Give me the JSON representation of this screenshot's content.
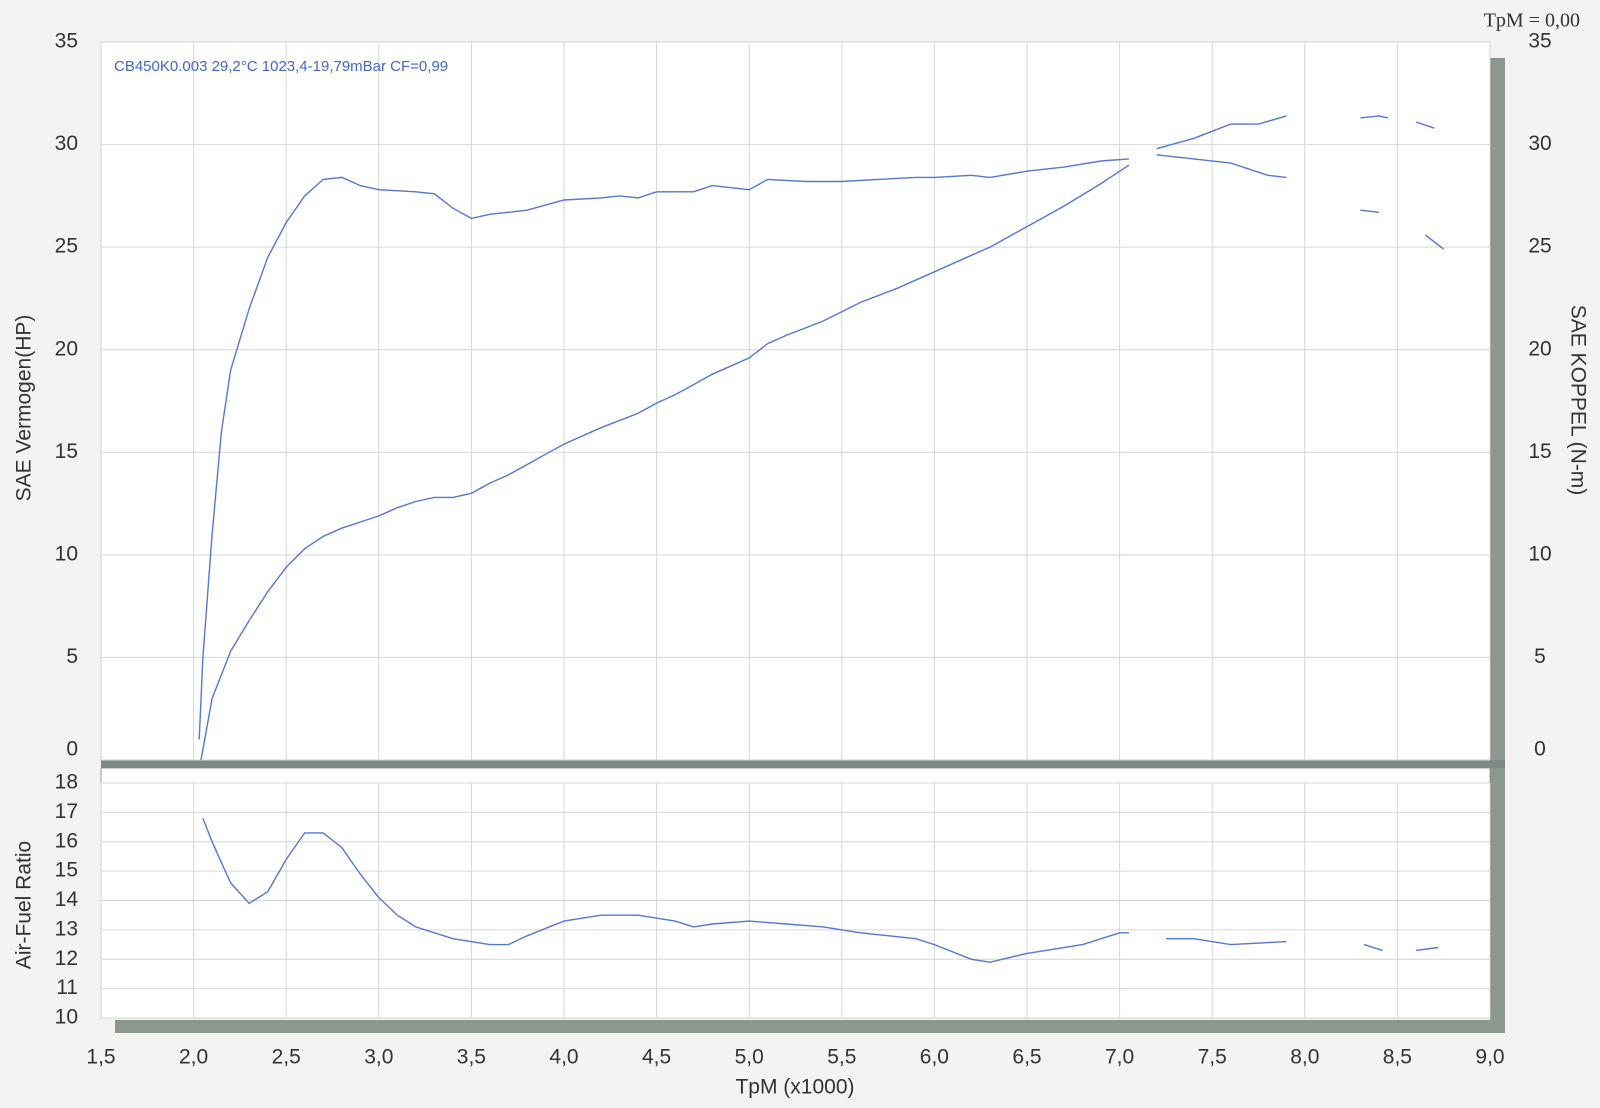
{
  "chart_data": [
    {
      "type": "line",
      "annotation": "TpM = 0,00",
      "subtitle": "CB450K0.003  29,2°C  1023,4-19,79mBar  CF=0,99",
      "ylabel": "SAE Vermogen(HP)",
      "y2label": "SAE KOPPEL (N-m)",
      "xlim": [
        1.5,
        9.0
      ],
      "xticks": [
        1.5,
        2.0,
        2.5,
        3.0,
        3.5,
        4.0,
        4.5,
        5.0,
        5.5,
        6.0,
        6.5,
        7.0,
        7.5,
        8.0,
        8.5,
        9.0
      ],
      "ylim": [
        0,
        35
      ],
      "yticks": [
        0,
        5,
        10,
        15,
        20,
        25,
        30,
        35
      ],
      "y2lim": [
        0,
        35
      ],
      "y2ticks": [
        0,
        5,
        10,
        15,
        20,
        25,
        30,
        35
      ],
      "grid": true,
      "series": [
        {
          "color": "#5577d4",
          "x": [
            2.04,
            2.1,
            2.2,
            2.3,
            2.4,
            2.5,
            2.6,
            2.7,
            2.8,
            2.9,
            3.0,
            3.1,
            3.2,
            3.3,
            3.4,
            3.5,
            3.6,
            3.7,
            3.8,
            3.9,
            4.0,
            4.2,
            4.4,
            4.5,
            4.6,
            4.8,
            5.0,
            5.1,
            5.2,
            5.4,
            5.6,
            5.8,
            6.0,
            6.2,
            6.3,
            6.5,
            6.7,
            6.9,
            7.05,
            null,
            7.2,
            7.4,
            7.6,
            7.75,
            7.9,
            null,
            8.3,
            8.4,
            8.45,
            null,
            8.6,
            8.7
          ],
          "values": [
            0,
            3,
            5.3,
            6.8,
            8.2,
            9.4,
            10.3,
            10.9,
            11.3,
            11.6,
            11.9,
            12.3,
            12.6,
            12.8,
            12.8,
            13.0,
            13.5,
            13.9,
            14.4,
            14.9,
            15.4,
            16.2,
            16.9,
            17.4,
            17.8,
            18.8,
            19.6,
            20.3,
            20.7,
            21.4,
            22.3,
            23.0,
            23.8,
            24.6,
            25.0,
            26.0,
            27.0,
            28.1,
            29.0,
            null,
            29.8,
            30.3,
            31.0,
            31.0,
            31.4,
            null,
            31.3,
            31.4,
            31.3,
            null,
            31.1,
            30.8
          ]
        },
        {
          "color": "#5577d4",
          "axis": "y2",
          "x": [
            2.03,
            2.05,
            2.1,
            2.15,
            2.2,
            2.3,
            2.4,
            2.5,
            2.6,
            2.7,
            2.8,
            2.9,
            3.0,
            3.2,
            3.3,
            3.4,
            3.5,
            3.6,
            3.8,
            4.0,
            4.2,
            4.3,
            4.4,
            4.5,
            4.7,
            4.8,
            5.0,
            5.1,
            5.3,
            5.5,
            5.7,
            5.9,
            6.0,
            6.2,
            6.3,
            6.5,
            6.7,
            6.9,
            7.05,
            null,
            7.2,
            7.4,
            7.6,
            7.7,
            7.8,
            7.9,
            null,
            8.3,
            8.4,
            null,
            8.65,
            8.75
          ],
          "values": [
            1,
            5,
            11,
            16,
            19,
            22,
            24.5,
            26.2,
            27.5,
            28.3,
            28.4,
            28.0,
            27.8,
            27.7,
            27.6,
            26.9,
            26.4,
            26.6,
            26.8,
            27.3,
            27.4,
            27.5,
            27.4,
            27.7,
            27.7,
            28.0,
            27.8,
            28.3,
            28.2,
            28.2,
            28.3,
            28.4,
            28.4,
            28.5,
            28.4,
            28.7,
            28.9,
            29.2,
            29.3,
            null,
            29.5,
            29.3,
            29.1,
            28.8,
            28.5,
            28.4,
            null,
            26.8,
            26.7,
            null,
            25.6,
            24.9
          ]
        }
      ]
    },
    {
      "type": "line",
      "ylabel": "Air-Fuel Ratio",
      "xlabel": "TpM (x1000)",
      "xlim": [
        1.5,
        9.0
      ],
      "xticks": [
        {
          "value": 1.5,
          "label": "1,5"
        },
        {
          "value": 2.0,
          "label": "2,0"
        },
        {
          "value": 2.5,
          "label": "2,5"
        },
        {
          "value": 3.0,
          "label": "3,0"
        },
        {
          "value": 3.5,
          "label": "3,5"
        },
        {
          "value": 4.0,
          "label": "4,0"
        },
        {
          "value": 4.5,
          "label": "4,5"
        },
        {
          "value": 5.0,
          "label": "5,0"
        },
        {
          "value": 5.5,
          "label": "5,5"
        },
        {
          "value": 6.0,
          "label": "6,0"
        },
        {
          "value": 6.5,
          "label": "6,5"
        },
        {
          "value": 7.0,
          "label": "7,0"
        },
        {
          "value": 7.5,
          "label": "7,5"
        },
        {
          "value": 8.0,
          "label": "8,0"
        },
        {
          "value": 8.5,
          "label": "8,5"
        },
        {
          "value": 9.0,
          "label": "9,0"
        }
      ],
      "ylim": [
        10,
        18
      ],
      "yticks": [
        10,
        11,
        12,
        13,
        14,
        15,
        16,
        17,
        18
      ],
      "grid": true,
      "series": [
        {
          "color": "#5577d4",
          "x": [
            2.05,
            2.1,
            2.2,
            2.3,
            2.4,
            2.5,
            2.6,
            2.7,
            2.8,
            2.9,
            3.0,
            3.1,
            3.2,
            3.4,
            3.6,
            3.7,
            3.8,
            4.0,
            4.2,
            4.4,
            4.6,
            4.7,
            4.8,
            5.0,
            5.2,
            5.4,
            5.6,
            5.9,
            6.0,
            6.2,
            6.3,
            6.5,
            6.8,
            7.0,
            7.05,
            null,
            7.25,
            7.4,
            7.6,
            7.9,
            null,
            8.32,
            8.42,
            null,
            8.6,
            8.72
          ],
          "values": [
            16.8,
            16.0,
            14.6,
            13.9,
            14.3,
            15.4,
            16.3,
            16.3,
            15.8,
            14.9,
            14.1,
            13.5,
            13.1,
            12.7,
            12.5,
            12.5,
            12.8,
            13.3,
            13.5,
            13.5,
            13.3,
            13.1,
            13.2,
            13.3,
            13.2,
            13.1,
            12.9,
            12.7,
            12.5,
            12.0,
            11.9,
            12.2,
            12.5,
            12.9,
            12.9,
            null,
            12.7,
            12.7,
            12.5,
            12.6,
            null,
            12.5,
            12.3,
            null,
            12.3,
            12.4
          ]
        }
      ]
    }
  ]
}
